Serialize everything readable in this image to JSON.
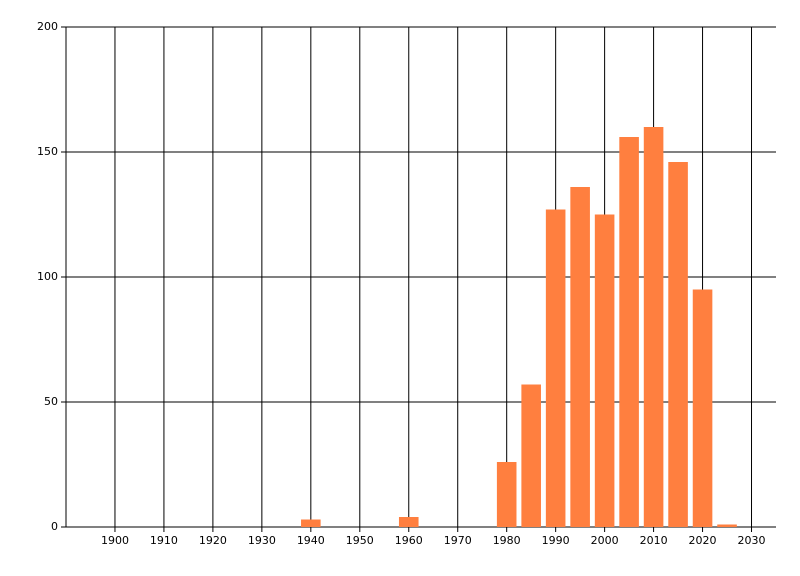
{
  "chart_data": {
    "type": "bar",
    "x": [
      1940,
      1960,
      1980,
      1985,
      1990,
      1995,
      2000,
      2005,
      2010,
      2015,
      2020,
      2025
    ],
    "values": [
      3,
      4,
      26,
      57,
      127,
      136,
      125,
      156,
      160,
      146,
      95,
      1
    ],
    "color": "#ff7f3f",
    "xlim": [
      1890,
      2035
    ],
    "xticks": [
      1900,
      1910,
      1920,
      1930,
      1940,
      1950,
      1960,
      1970,
      1980,
      1990,
      2000,
      2010,
      2020,
      2030
    ],
    "ylim": [
      0,
      200
    ],
    "yticks": [
      0,
      50,
      100,
      150,
      200
    ],
    "grid": true
  }
}
